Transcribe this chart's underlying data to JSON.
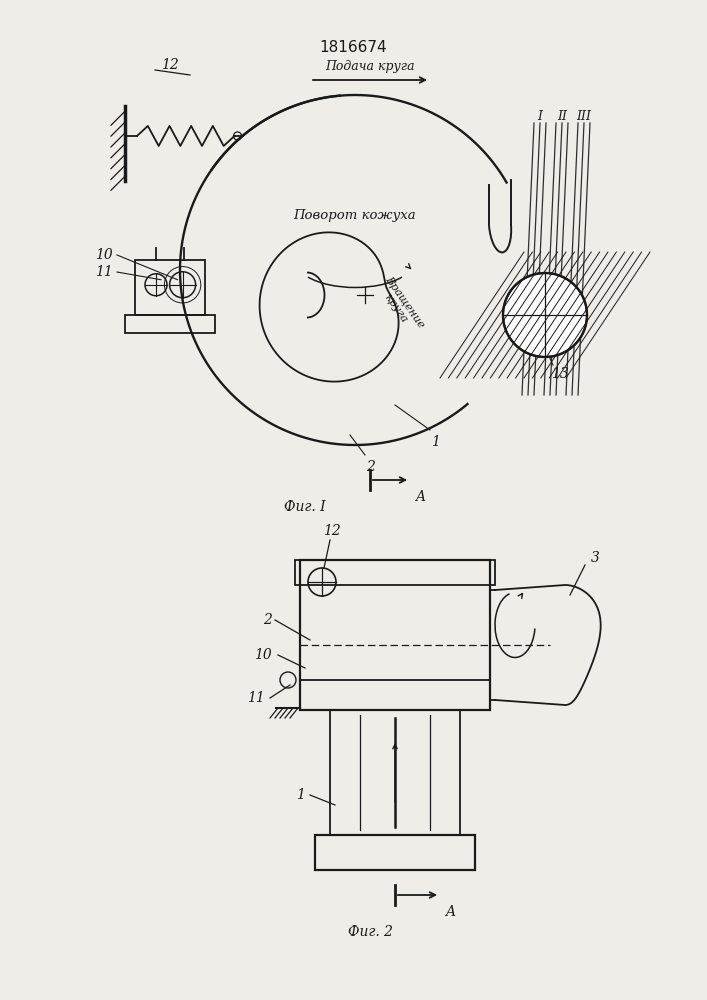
{
  "title": "1816674",
  "fig1_label": "Фиг. I",
  "fig2_label": "Фиг. 2",
  "podacha_text": "Подача круга",
  "povorot_text": "Поворот кожуха",
  "vrashenie_text": "Вращение\nкруга",
  "bg_color": "#f0ede8",
  "line_color": "#1a1a1a"
}
